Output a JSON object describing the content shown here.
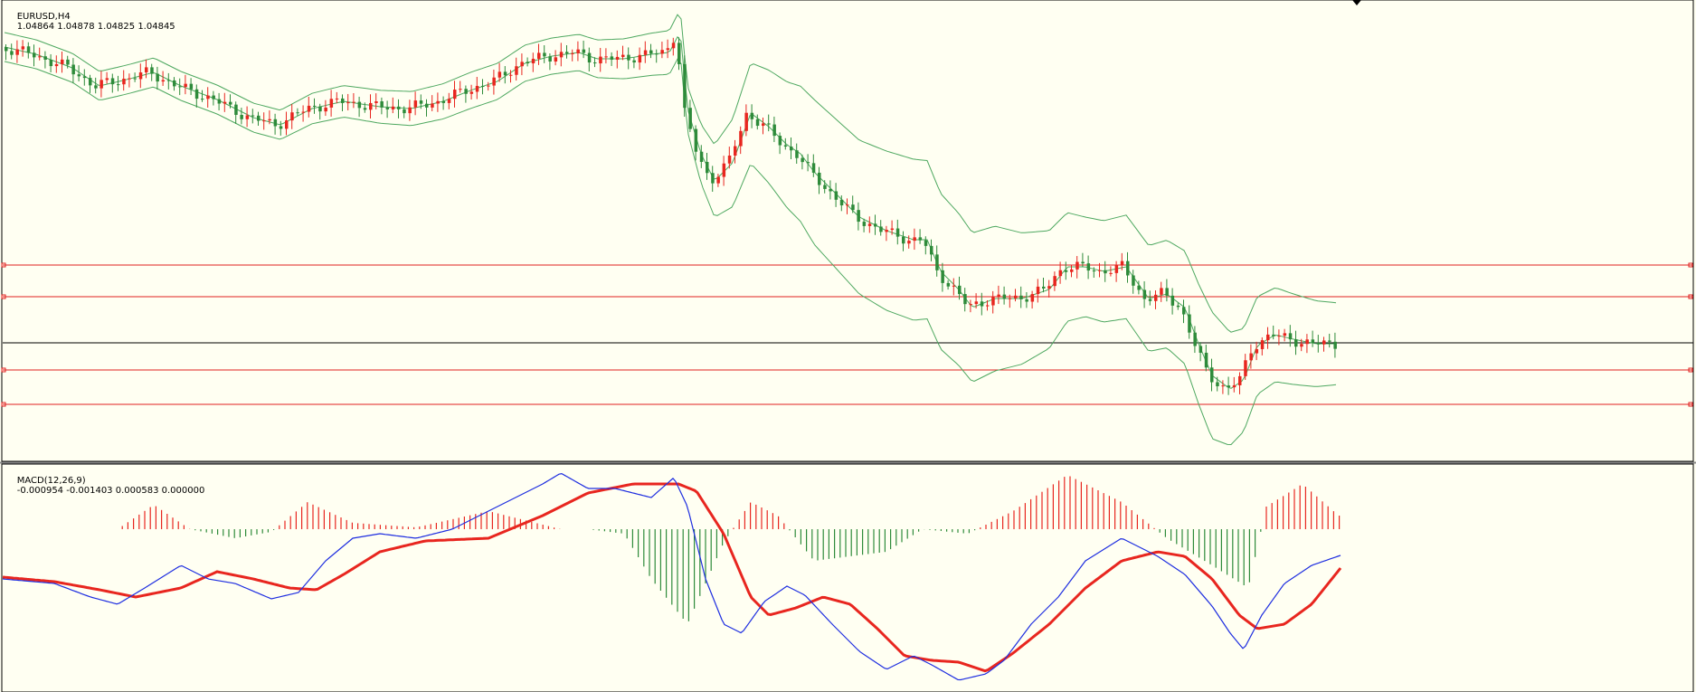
{
  "main_panel": {
    "symbol_label": "EURUSD,H4",
    "ohlc_label": "1.04864 1.04878 1.04825 1.04845"
  },
  "macd_panel": {
    "indicator_label": "MACD(12,26,9)",
    "values_label": "-0.000954 -0.001403 0.000583 0.000000"
  },
  "colors": {
    "background": "#fffff2",
    "bull_candle": "#e8261f",
    "bear_candle": "#2e8b3a",
    "bollinger": "#4ea860",
    "level_line": "#e02020",
    "current_price_line": "#000000",
    "macd_line": "#1e2ee0",
    "signal_line": "#e8261f",
    "hist_pos": "#e8261f",
    "hist_neg": "#2e8b3a"
  },
  "chart_data": [
    {
      "type": "candlestick",
      "title": "EURUSD,H4",
      "symbol": "EURUSD",
      "timeframe": "H4",
      "last_bar": {
        "open": 1.04864,
        "high": 1.04878,
        "low": 1.04825,
        "close": 1.04845
      },
      "current_price": 1.04845,
      "overlay": "Bollinger Bands",
      "horizontal_levels_count": 4,
      "price_path_keypoints": [
        1.098,
        1.093,
        1.086,
        1.084,
        1.09,
        1.092,
        1.097,
        1.1,
        1.107,
        1.084,
        1.09,
        1.079,
        1.072,
        1.061,
        1.052,
        1.058,
        1.054,
        1.049,
        1.037,
        1.049,
        1.048
      ]
    },
    {
      "type": "line",
      "title": "MACD(12,26,9)",
      "last_values": {
        "macd": -0.000954,
        "signal": -0.001403,
        "histogram": 0.000583,
        "zero": 0.0
      },
      "series": [
        {
          "name": "MACD",
          "values": [
            -0.001,
            -0.001,
            -0.002,
            -0.0005,
            -0.0012,
            -0.0018,
            0.0005,
            0.0012,
            0.0015,
            0.0028,
            0.003,
            0.0033,
            0.003,
            -0.0045,
            -0.002,
            -0.0035,
            -0.005,
            -0.0058,
            -0.004,
            -0.0015,
            0.001,
            -0.0005,
            -0.0045,
            -0.002,
            -0.001
          ]
        },
        {
          "name": "Signal",
          "values": [
            -0.001,
            -0.0012,
            -0.0018,
            -0.0007,
            -0.001,
            -0.0015,
            0.0,
            0.0008,
            0.0012,
            0.002,
            0.0028,
            0.003,
            0.003,
            -0.0025,
            -0.003,
            -0.0038,
            -0.0045,
            -0.0055,
            -0.004,
            -0.0015,
            -0.0005,
            -0.0005,
            -0.0035,
            -0.0025,
            -0.001
          ]
        }
      ]
    }
  ]
}
